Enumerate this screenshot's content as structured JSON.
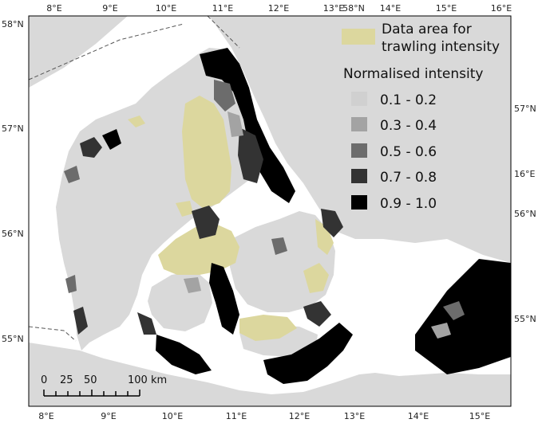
{
  "legend": {
    "data_area_label_line1": "Data area for",
    "data_area_label_line2": "trawling intensity",
    "data_area_color": "#dcd79e",
    "intensity_title": "Normalised intensity",
    "classes": [
      {
        "label": "0.1 - 0.2",
        "color": "#d0d0d0"
      },
      {
        "label": "0.3 - 0.4",
        "color": "#a3a3a3"
      },
      {
        "label": "0.5 - 0.6",
        "color": "#6c6c6c"
      },
      {
        "label": "0.7 - 0.8",
        "color": "#333333"
      },
      {
        "label": "0.9 - 1.0",
        "color": "#000000"
      }
    ]
  },
  "graticule": {
    "top_labels": [
      "8°E",
      "9°E",
      "10°E",
      "11°E",
      "12°E",
      "13°E",
      "58°N",
      "14°E",
      "15°E",
      "16°E"
    ],
    "bottom_labels": [
      "8°E",
      "9°E",
      "10°E",
      "11°E",
      "12°E",
      "13°E",
      "14°E",
      "15°E"
    ],
    "left_labels": [
      "58°N",
      "57°N",
      "56°N",
      "55°N"
    ],
    "right_labels": [
      "57°N",
      "16°E",
      "56°N",
      "55°N"
    ]
  },
  "scale_bar": {
    "labels": [
      "0",
      "25",
      "50",
      "100 km"
    ]
  },
  "colors": {
    "sea": "#ffffff",
    "land": "#d9d9d9",
    "sweden_land": "#d9d9d9",
    "frame": "#000000"
  }
}
